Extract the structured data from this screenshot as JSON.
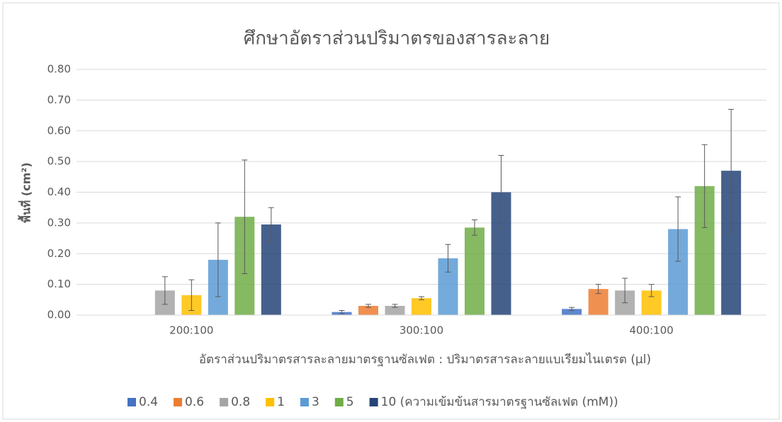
{
  "chart_data": {
    "type": "bar",
    "title": "ศึกษาอัตราส่วนปริมาตรของสารละลาย",
    "x_label": "อัตราส่วนปริมาตรสารละลายมาตรฐานซัลเฟต : ปริมาตรสารละลายแบเรียมไนเตรต (µl)",
    "y_label": "พื้นที่  (cm²)",
    "categories": [
      "200:100",
      "300:100",
      "400:100"
    ],
    "series": [
      {
        "name": "0.4",
        "color": "#4472c4",
        "values": [
          null,
          0.01,
          0.02
        ],
        "errors": [
          null,
          0.005,
          0.005
        ]
      },
      {
        "name": "0.6",
        "color": "#ed7d31",
        "values": [
          null,
          0.03,
          0.085
        ],
        "errors": [
          null,
          0.005,
          0.015
        ]
      },
      {
        "name": "0.8",
        "color": "#a5a5a5",
        "values": [
          0.08,
          0.03,
          0.08
        ],
        "errors": [
          0.045,
          0.005,
          0.04
        ]
      },
      {
        "name": "1",
        "color": "#ffc000",
        "values": [
          0.065,
          0.055,
          0.08
        ],
        "errors": [
          0.05,
          0.005,
          0.02
        ]
      },
      {
        "name": "3",
        "color": "#5b9bd5",
        "values": [
          0.18,
          0.185,
          0.28
        ],
        "errors": [
          0.12,
          0.045,
          0.105
        ]
      },
      {
        "name": "5",
        "color": "#70ad47",
        "values": [
          0.32,
          0.285,
          0.42
        ],
        "errors": [
          0.185,
          0.025,
          0.135
        ]
      },
      {
        "name": "10 (ความเข้มข้นสารมาตรฐานซัลเฟต (mM))",
        "color": "#264478",
        "values": [
          0.295,
          0.4,
          0.47
        ],
        "errors": [
          0.055,
          0.12,
          0.2
        ]
      }
    ],
    "ylim": [
      0,
      0.8
    ],
    "yticks": [
      {
        "value": 0,
        "label": "0.00"
      },
      {
        "value": 0.1,
        "label": "0.10"
      },
      {
        "value": 0.2,
        "label": "0.20"
      },
      {
        "value": 0.3,
        "label": "0.30"
      },
      {
        "value": 0.4,
        "label": "0.40"
      },
      {
        "value": 0.5,
        "label": "0.50"
      },
      {
        "value": 0.6,
        "label": "0.60"
      },
      {
        "value": 0.7,
        "label": "0.70"
      },
      {
        "value": 0.8,
        "label": "0.80"
      }
    ],
    "grid": true,
    "legend": "bottom"
  }
}
